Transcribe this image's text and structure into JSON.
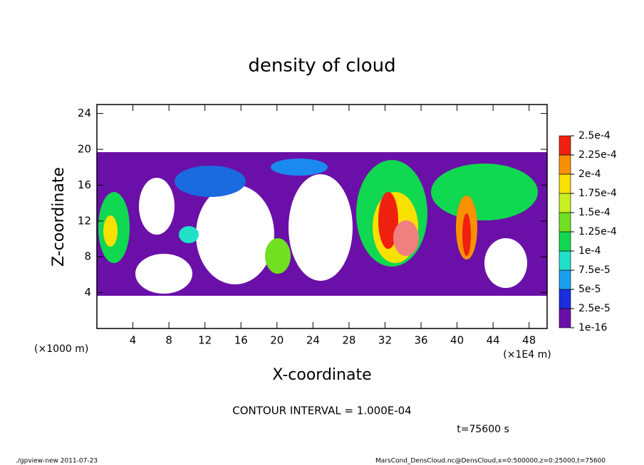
{
  "chart_data": {
    "type": "contour",
    "title": "density of cloud",
    "x_label": "X-coordinate",
    "y_label": "Z-coordinate",
    "x_unit_label": "(×1E4 m)",
    "y_unit_label": "(×1000 m)",
    "xlim": [
      0,
      50
    ],
    "xticks": [
      4,
      8,
      12,
      16,
      20,
      24,
      28,
      32,
      36,
      40,
      44,
      48
    ],
    "ylim": [
      0,
      25
    ],
    "yticks": [
      4,
      8,
      12,
      16,
      20,
      24
    ],
    "colorbar": {
      "levels": [
        {
          "value": 1e-16,
          "label": "1e-16"
        },
        {
          "value": 2.5e-05,
          "label": "2.5e-5"
        },
        {
          "value": 5e-05,
          "label": "5e-5"
        },
        {
          "value": 7.5e-05,
          "label": "7.5e-5"
        },
        {
          "value": 0.0001,
          "label": "1e-4"
        },
        {
          "value": 0.000125,
          "label": "1.25e-4"
        },
        {
          "value": 0.00015,
          "label": "1.5e-4"
        },
        {
          "value": 0.000175,
          "label": "1.75e-4"
        },
        {
          "value": 0.0002,
          "label": "2e-4"
        },
        {
          "value": 0.000225,
          "label": "2.25e-4"
        },
        {
          "value": 0.00025,
          "label": "2.5e-4"
        }
      ],
      "colors": [
        "#6a10a8",
        "#1a2de0",
        "#1aa0f0",
        "#20e0c8",
        "#10d850",
        "#70e020",
        "#c8f020",
        "#f8e000",
        "#f89000",
        "#f02010"
      ]
    },
    "annotations": [
      "CONTOUR INTERVAL = 1.000E-04",
      "t=75600 s"
    ]
  },
  "footer": {
    "left": "./gpview-new  2011-07-23",
    "right": "MarsCond_DensCloud.nc@DensCloud,x=0:500000,z=0:25000,t=75600"
  }
}
